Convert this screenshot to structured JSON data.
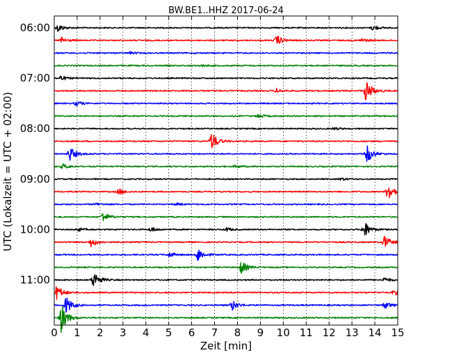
{
  "chart_data": {
    "type": "line",
    "title": "BW.BE1..HHZ 2017-06-24",
    "xlabel": "Zeit  [min]",
    "ylabel": "UTC (Lokalzeit = UTC + 02:00)",
    "xlim": [
      0,
      15
    ],
    "x_ticks": [
      "0",
      "1",
      "2",
      "3",
      "4",
      "5",
      "6",
      "7",
      "8",
      "9",
      "10",
      "11",
      "12",
      "13",
      "14",
      "15"
    ],
    "y_ticks": [
      "06:00",
      "07:00",
      "08:00",
      "09:00",
      "10:00",
      "11:00"
    ],
    "grid": true,
    "series_colors": [
      "#000000",
      "#ff0000",
      "#0000ff",
      "#008000"
    ],
    "traces": [
      {
        "start": "06:00",
        "color": "#000000",
        "events": [
          {
            "t": 0.15,
            "a": 6
          },
          {
            "t": 13.9,
            "a": 4
          }
        ]
      },
      {
        "start": "06:15",
        "color": "#ff0000",
        "events": [
          {
            "t": 0.3,
            "a": 5
          },
          {
            "t": 9.7,
            "a": 8
          },
          {
            "t": 13.4,
            "a": 3
          }
        ]
      },
      {
        "start": "06:30",
        "color": "#0000ff",
        "events": [
          {
            "t": 3.3,
            "a": 1.5
          }
        ]
      },
      {
        "start": "06:45",
        "color": "#008000",
        "events": [
          {
            "t": 6.4,
            "a": 1.5
          }
        ]
      },
      {
        "start": "07:00",
        "color": "#000000",
        "events": [
          {
            "t": 0.25,
            "a": 4
          }
        ]
      },
      {
        "start": "07:15",
        "color": "#ff0000",
        "events": [
          {
            "t": 9.7,
            "a": 3
          },
          {
            "t": 13.6,
            "a": 18
          }
        ]
      },
      {
        "start": "07:30",
        "color": "#0000ff",
        "events": [
          {
            "t": 0.95,
            "a": 4
          }
        ]
      },
      {
        "start": "07:45",
        "color": "#008000",
        "events": [
          {
            "t": 8.9,
            "a": 3
          }
        ]
      },
      {
        "start": "08:00",
        "color": "#000000",
        "events": [
          {
            "t": 12.2,
            "a": 2
          }
        ]
      },
      {
        "start": "08:15",
        "color": "#ff0000",
        "events": [
          {
            "t": 6.85,
            "a": 14
          }
        ]
      },
      {
        "start": "08:30",
        "color": "#0000ff",
        "events": [
          {
            "t": 0.65,
            "a": 12
          },
          {
            "t": 13.65,
            "a": 14
          }
        ]
      },
      {
        "start": "08:45",
        "color": "#008000",
        "events": [
          {
            "t": 0.35,
            "a": 4
          },
          {
            "t": 7.9,
            "a": 2
          }
        ]
      },
      {
        "start": "09:00",
        "color": "#000000",
        "events": [
          {
            "t": 12.5,
            "a": 2
          }
        ]
      },
      {
        "start": "09:15",
        "color": "#ff0000",
        "events": [
          {
            "t": 2.8,
            "a": 5
          },
          {
            "t": 14.55,
            "a": 16
          }
        ]
      },
      {
        "start": "09:30",
        "color": "#0000ff",
        "events": [
          {
            "t": 1.8,
            "a": 2
          },
          {
            "t": 5.3,
            "a": 2
          }
        ]
      },
      {
        "start": "09:45",
        "color": "#008000",
        "events": [
          {
            "t": 2.1,
            "a": 8
          }
        ]
      },
      {
        "start": "10:00",
        "color": "#000000",
        "events": [
          {
            "t": 1.0,
            "a": 3
          },
          {
            "t": 4.2,
            "a": 4
          },
          {
            "t": 7.5,
            "a": 3
          },
          {
            "t": 13.5,
            "a": 14
          }
        ]
      },
      {
        "start": "10:15",
        "color": "#ff0000",
        "events": [
          {
            "t": 1.6,
            "a": 7
          },
          {
            "t": 14.4,
            "a": 10
          }
        ]
      },
      {
        "start": "10:30",
        "color": "#0000ff",
        "events": [
          {
            "t": 5.0,
            "a": 4
          },
          {
            "t": 6.25,
            "a": 11
          }
        ]
      },
      {
        "start": "10:45",
        "color": "#008000",
        "events": [
          {
            "t": 8.15,
            "a": 10
          }
        ]
      },
      {
        "start": "11:00",
        "color": "#000000",
        "events": [
          {
            "t": 1.7,
            "a": 14
          },
          {
            "t": 14.4,
            "a": 4
          }
        ]
      },
      {
        "start": "11:15",
        "color": "#ff0000",
        "events": [
          {
            "t": 0.1,
            "a": 12
          },
          {
            "t": 14.8,
            "a": 4
          }
        ]
      },
      {
        "start": "11:30",
        "color": "#0000ff",
        "events": [
          {
            "t": 0.5,
            "a": 14
          },
          {
            "t": 7.75,
            "a": 8
          },
          {
            "t": 14.4,
            "a": 6
          }
        ]
      },
      {
        "start": "11:45",
        "color": "#008000",
        "events": [
          {
            "t": 0.3,
            "a": 22
          }
        ]
      }
    ]
  }
}
